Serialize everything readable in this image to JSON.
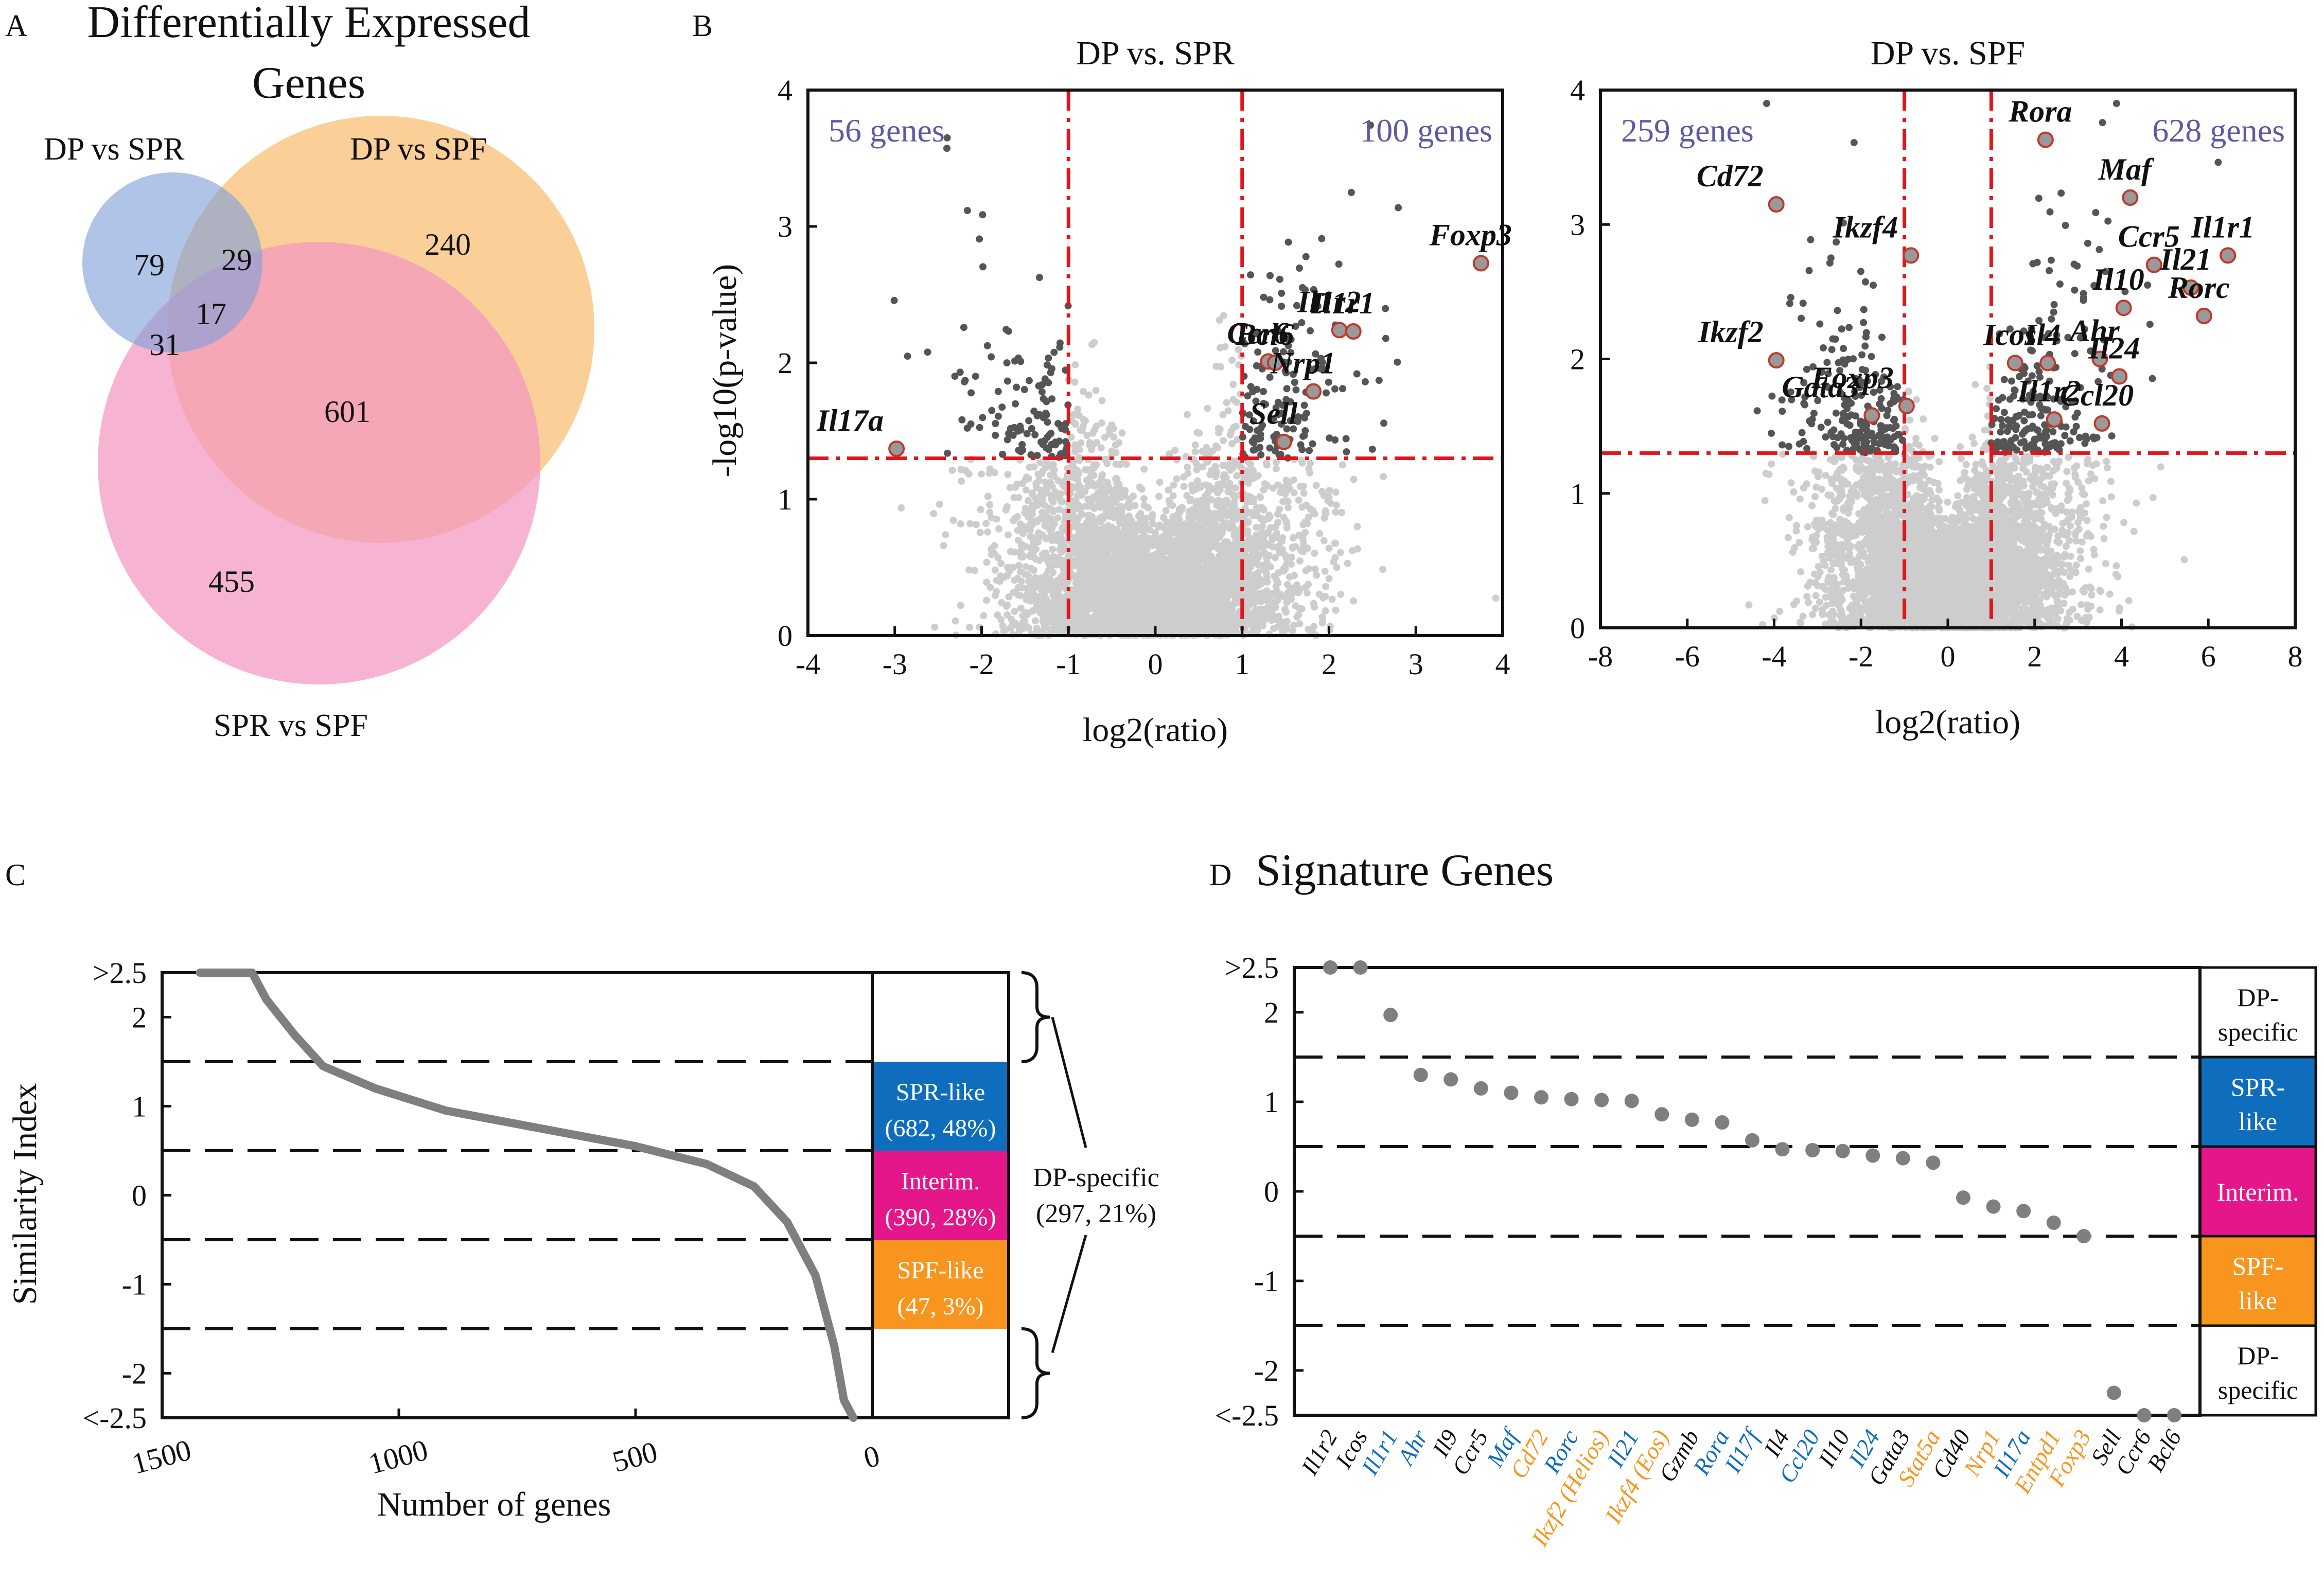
{
  "panel_letters": {
    "a": "A",
    "b": "B",
    "c": "C",
    "d": "D"
  },
  "chart_data": [
    {
      "type": "venn",
      "title": "Differentially Expressed Genes",
      "sets": [
        {
          "name": "DP vs SPR",
          "color": "#7f9fd9"
        },
        {
          "name": "DP vs SPF",
          "color": "#f9c786"
        },
        {
          "name": "SPR vs SPF",
          "color": "#f497c1"
        }
      ],
      "regions": [
        {
          "sets": [
            "DP vs SPR"
          ],
          "count": 79
        },
        {
          "sets": [
            "DP vs SPR",
            "DP vs SPF"
          ],
          "count": 29
        },
        {
          "sets": [
            "DP vs SPR",
            "DP vs SPF",
            "SPR vs SPF"
          ],
          "count": 17
        },
        {
          "sets": [
            "DP vs SPR",
            "SPR vs SPF"
          ],
          "count": 31
        },
        {
          "sets": [
            "DP vs SPF"
          ],
          "count": 240
        },
        {
          "sets": [
            "DP vs SPF",
            "SPR vs SPF"
          ],
          "count": 601
        },
        {
          "sets": [
            "SPR vs SPF"
          ],
          "count": 455
        }
      ]
    },
    {
      "type": "scatter",
      "title": "DP vs. SPR",
      "xlabel": "log2(ratio)",
      "ylabel": "-log10(p-value)",
      "xlim": [
        -4,
        4
      ],
      "ylim": [
        0,
        4
      ],
      "xticks": [
        -4,
        -3,
        -2,
        -1,
        0,
        1,
        2,
        3,
        4
      ],
      "yticks": [
        0,
        1,
        2,
        3,
        4
      ],
      "thresholds": {
        "x": [
          -1,
          1
        ],
        "y": 1.3
      },
      "counts": {
        "left": "56 genes",
        "right": "100 genes"
      },
      "colors": {
        "background": "#cdcdcd",
        "significant": "#555555",
        "threshold": "#e0161c",
        "count_text": "#5a5aa6"
      },
      "labeled_genes": [
        {
          "name": "Foxp3",
          "x": 3.75,
          "y": 2.73
        },
        {
          "name": "Il1r2",
          "x": 2.12,
          "y": 2.24
        },
        {
          "name": "Il1r1",
          "x": 2.28,
          "y": 2.23
        },
        {
          "name": "Ccr6",
          "x": 1.3,
          "y": 2.01
        },
        {
          "name": "Bcl6",
          "x": 1.38,
          "y": 2.0
        },
        {
          "name": "Nrp1",
          "x": 1.82,
          "y": 1.79
        },
        {
          "name": "Sell",
          "x": 1.48,
          "y": 1.42
        },
        {
          "name": "Il17a",
          "x": -2.98,
          "y": 1.37
        }
      ]
    },
    {
      "type": "scatter",
      "title": "DP vs. SPF",
      "xlabel": "log2(ratio)",
      "ylabel": "",
      "xlim": [
        -8,
        8
      ],
      "ylim": [
        0,
        4
      ],
      "xticks": [
        -8,
        -6,
        -4,
        -2,
        0,
        2,
        4,
        6,
        8
      ],
      "yticks": [
        0,
        1,
        2,
        3,
        4
      ],
      "thresholds": {
        "x": [
          -1,
          1
        ],
        "y": 1.3
      },
      "counts": {
        "left": "259 genes",
        "right": "628 genes"
      },
      "colors": {
        "background": "#cdcdcd",
        "significant": "#555555",
        "threshold": "#e0161c",
        "count_text": "#5a5aa6"
      },
      "labeled_genes": [
        {
          "name": "Rora",
          "x": 2.25,
          "y": 3.63
        },
        {
          "name": "Cd72",
          "x": -3.95,
          "y": 3.15
        },
        {
          "name": "Maf",
          "x": 4.2,
          "y": 3.2
        },
        {
          "name": "Il1r1",
          "x": 6.45,
          "y": 2.77
        },
        {
          "name": "Ikzf4",
          "x": -0.85,
          "y": 2.77
        },
        {
          "name": "Ccr5",
          "x": 4.75,
          "y": 2.7
        },
        {
          "name": "Il21",
          "x": 5.6,
          "y": 2.53
        },
        {
          "name": "Il10",
          "x": 4.05,
          "y": 2.38
        },
        {
          "name": "Rorc",
          "x": 5.9,
          "y": 2.32
        },
        {
          "name": "Icos",
          "x": 1.55,
          "y": 1.97
        },
        {
          "name": "Il4",
          "x": 2.3,
          "y": 1.97
        },
        {
          "name": "Ahr",
          "x": 3.5,
          "y": 2.0
        },
        {
          "name": "Il24",
          "x": 3.95,
          "y": 1.87
        },
        {
          "name": "Ikzf2",
          "x": -3.95,
          "y": 1.99
        },
        {
          "name": "Foxp3",
          "x": -0.95,
          "y": 1.65
        },
        {
          "name": "Gata3",
          "x": -1.75,
          "y": 1.58
        },
        {
          "name": "Il1r2",
          "x": 2.45,
          "y": 1.55
        },
        {
          "name": "Ccl20",
          "x": 3.55,
          "y": 1.52
        }
      ]
    },
    {
      "type": "line",
      "xlabel": "Number of genes",
      "ylabel": "Similarity Index",
      "xlim": [
        1500,
        0
      ],
      "ylim": [
        -2.5,
        2.5
      ],
      "xticks": [
        1500,
        1000,
        500,
        0
      ],
      "yticks": [
        {
          "v": 2.5,
          "label": ">2.5"
        },
        {
          "v": 2,
          "label": "2"
        },
        {
          "v": 1,
          "label": "1"
        },
        {
          "v": 0,
          "label": "0"
        },
        {
          "v": -1,
          "label": "-1"
        },
        {
          "v": -2,
          "label": "-2"
        },
        {
          "v": -2.5,
          "label": "<-2.5"
        }
      ],
      "dashed_lines": [
        1.5,
        0.5,
        -0.5,
        -1.5
      ],
      "color": "#7f7f7f",
      "curve": [
        {
          "n": 1420,
          "v": 2.5
        },
        {
          "n": 1310,
          "v": 2.5
        },
        {
          "n": 1280,
          "v": 2.2
        },
        {
          "n": 1220,
          "v": 1.8
        },
        {
          "n": 1160,
          "v": 1.45
        },
        {
          "n": 1050,
          "v": 1.2
        },
        {
          "n": 900,
          "v": 0.95
        },
        {
          "n": 700,
          "v": 0.75
        },
        {
          "n": 500,
          "v": 0.55
        },
        {
          "n": 350,
          "v": 0.35
        },
        {
          "n": 250,
          "v": 0.1
        },
        {
          "n": 180,
          "v": -0.3
        },
        {
          "n": 120,
          "v": -0.9
        },
        {
          "n": 80,
          "v": -1.7
        },
        {
          "n": 60,
          "v": -2.3
        },
        {
          "n": 40,
          "v": -2.5
        }
      ],
      "categories": [
        {
          "label": "SPR-like",
          "sub": "(682, 48%)",
          "range": [
            0.5,
            1.5
          ],
          "color": "#0f6dbe"
        },
        {
          "label": "Interim.",
          "sub": "(390, 28%)",
          "range": [
            -0.5,
            0.5
          ],
          "color": "#e5168a"
        },
        {
          "label": "SPF-like",
          "sub": "(47, 3%)",
          "range": [
            -1.5,
            -0.5
          ],
          "color": "#f7951e"
        }
      ],
      "dp_specific": {
        "label": "DP-specific",
        "sub": "(297, 21%)"
      }
    },
    {
      "type": "scatter",
      "title": "Signature Genes",
      "ylim": [
        -2.5,
        2.5
      ],
      "yticks": [
        {
          "v": 2.5,
          "label": ">2.5"
        },
        {
          "v": 2,
          "label": "2"
        },
        {
          "v": 1,
          "label": "1"
        },
        {
          "v": 0,
          "label": "0"
        },
        {
          "v": -1,
          "label": "-1"
        },
        {
          "v": -2,
          "label": "-2"
        },
        {
          "v": -2.5,
          "label": "<-2.5"
        }
      ],
      "dashed_lines": [
        1.5,
        0.5,
        -0.5,
        -1.5
      ],
      "point_color": "#7f7f7f",
      "gene_colors": {
        "black": "#111111",
        "blue": "#0f6dbe",
        "orange": "#f7951e"
      },
      "genes": [
        {
          "name": "Il1r2",
          "value": 2.5,
          "color": "black"
        },
        {
          "name": "Icos",
          "value": 2.5,
          "color": "black"
        },
        {
          "name": "Il1r1",
          "value": 1.97,
          "color": "blue"
        },
        {
          "name": "Ahr",
          "value": 1.3,
          "color": "blue"
        },
        {
          "name": "Il9",
          "value": 1.25,
          "color": "black"
        },
        {
          "name": "Ccr5",
          "value": 1.15,
          "color": "black"
        },
        {
          "name": "Maf",
          "value": 1.1,
          "color": "blue"
        },
        {
          "name": "Cd72",
          "value": 1.05,
          "color": "orange"
        },
        {
          "name": "Rorc",
          "value": 1.03,
          "color": "blue"
        },
        {
          "name": "Ikzf2 (Helios)",
          "value": 1.02,
          "color": "orange"
        },
        {
          "name": "Il21",
          "value": 1.01,
          "color": "blue"
        },
        {
          "name": "Ikzf4 (Eos)",
          "value": 0.86,
          "color": "orange"
        },
        {
          "name": "Gzmb",
          "value": 0.8,
          "color": "black"
        },
        {
          "name": "Rora",
          "value": 0.77,
          "color": "blue"
        },
        {
          "name": "Il17f",
          "value": 0.57,
          "color": "blue"
        },
        {
          "name": "Il4",
          "value": 0.47,
          "color": "black"
        },
        {
          "name": "Ccl20",
          "value": 0.46,
          "color": "blue"
        },
        {
          "name": "Il10",
          "value": 0.45,
          "color": "black"
        },
        {
          "name": "Il24",
          "value": 0.4,
          "color": "blue"
        },
        {
          "name": "Gata3",
          "value": 0.37,
          "color": "black"
        },
        {
          "name": "Stat5a",
          "value": 0.32,
          "color": "orange"
        },
        {
          "name": "Cd40",
          "value": -0.07,
          "color": "black"
        },
        {
          "name": "Nrp1",
          "value": -0.17,
          "color": "orange"
        },
        {
          "name": "Il17a",
          "value": -0.22,
          "color": "blue"
        },
        {
          "name": "Entpd1",
          "value": -0.35,
          "color": "orange"
        },
        {
          "name": "Foxp3",
          "value": -0.5,
          "color": "orange"
        },
        {
          "name": "Sell",
          "value": -2.25,
          "color": "black"
        },
        {
          "name": "Ccr6",
          "value": -2.5,
          "color": "black"
        },
        {
          "name": "Bcl6",
          "value": -2.5,
          "color": "black"
        }
      ],
      "categories": [
        {
          "label1": "DP-",
          "label2": "specific",
          "range": [
            1.5,
            2.5
          ],
          "color": "#ffffff",
          "text": "#111111"
        },
        {
          "label1": "SPR-",
          "label2": "like",
          "range": [
            0.5,
            1.5
          ],
          "color": "#0f6dbe",
          "text": "#ffffff"
        },
        {
          "label1": "Interim.",
          "label2": "",
          "range": [
            -0.5,
            0.5
          ],
          "color": "#e5168a",
          "text": "#ffffff"
        },
        {
          "label1": "SPF-",
          "label2": "like",
          "range": [
            -1.5,
            -0.5
          ],
          "color": "#f7951e",
          "text": "#ffffff"
        },
        {
          "label1": "DP-",
          "label2": "specific",
          "range": [
            -2.5,
            -1.5
          ],
          "color": "#ffffff",
          "text": "#111111"
        }
      ]
    }
  ]
}
